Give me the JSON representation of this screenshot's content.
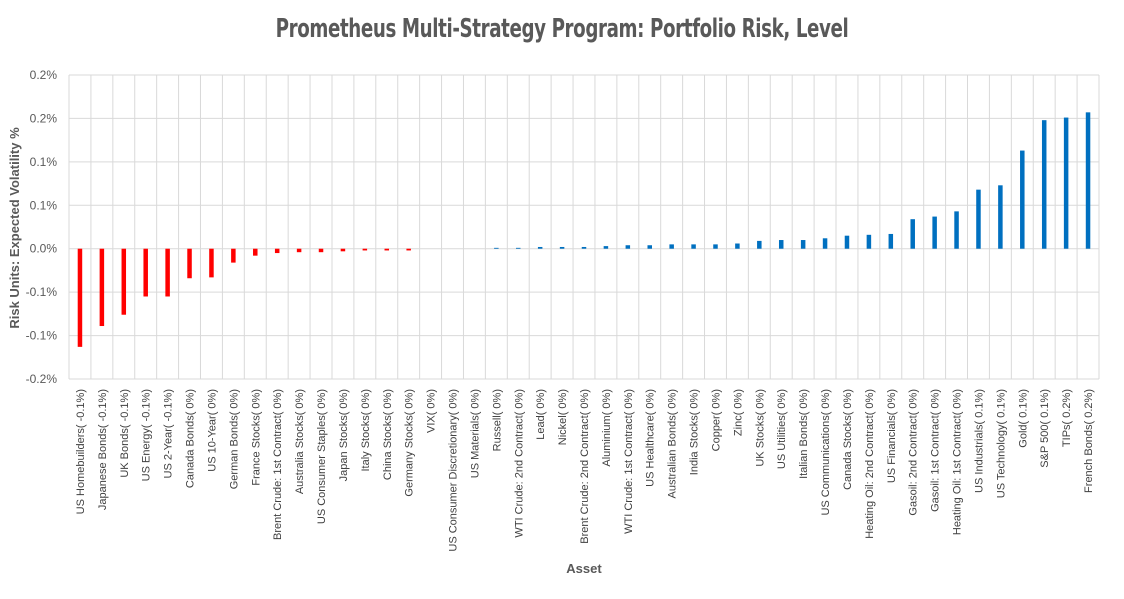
{
  "chart_data": {
    "type": "bar",
    "title": "Prometheus Multi-Strategy Program: Portfolio Risk, Level",
    "xlabel": "Asset",
    "ylabel": "Risk Units: Expected Volatility %",
    "ylim": [
      -0.15,
      0.2
    ],
    "yticks": [
      0.2,
      0.15,
      0.1,
      0.05,
      0.0,
      -0.05,
      -0.1,
      -0.15
    ],
    "ytick_labels": [
      "0.2%",
      "0.2%",
      "0.1%",
      "0.1%",
      "0.0%",
      "-0.1%",
      "-0.1%",
      "-0.2%"
    ],
    "negative_color": "#ff0000",
    "positive_color": "#0070c0",
    "categories": [
      "US Homebuilders( -0.1%)",
      "Japanese Bonds( -0.1%)",
      "UK Bonds( -0.1%)",
      "US Energy( -0.1%)",
      "US 2-Year( -0.1%)",
      "Canada Bonds( 0%)",
      "US 10-Year( 0%)",
      "German Bonds( 0%)",
      "France Stocks( 0%)",
      "Brent Crude: 1st Contract( 0%)",
      "Australia Stocks( 0%)",
      "US Consumer Staples( 0%)",
      "Japan Stocks( 0%)",
      "Italy Stocks( 0%)",
      "China Stocks( 0%)",
      "Germany Stocks( 0%)",
      "VIX( 0%)",
      "US Consumer Discretionary( 0%)",
      "US Materials( 0%)",
      "Russell( 0%)",
      "WTI Crude: 2nd Contract( 0%)",
      "Lead( 0%)",
      "Nickel( 0%)",
      "Brent Crude: 2nd Contract( 0%)",
      "Aluminium( 0%)",
      "WTI Crude: 1st Contract( 0%)",
      "US Healthcare( 0%)",
      "Australian Bonds( 0%)",
      "India Stocks( 0%)",
      "Copper( 0%)",
      "Zinc( 0%)",
      "UK Stocks( 0%)",
      "US Utilities( 0%)",
      "Italian Bonds( 0%)",
      "US Communications( 0%)",
      "Canada Stocks( 0%)",
      "Heating Oil: 2nd Contract( 0%)",
      "US Financials( 0%)",
      "Gasoil: 2nd Contract( 0%)",
      "Gasoil: 1st Contract( 0%)",
      "Heating Oil: 1st Contract( 0%)",
      "US Industrials( 0.1%)",
      "US Technology( 0.1%)",
      "Gold( 0.1%)",
      "S&P 500( 0.1%)",
      "TIPs( 0.2%)",
      "French Bonds( 0.2%)"
    ],
    "values": [
      -0.113,
      -0.089,
      -0.076,
      -0.055,
      -0.055,
      -0.034,
      -0.033,
      -0.016,
      -0.008,
      -0.005,
      -0.004,
      -0.004,
      -0.003,
      -0.002,
      -0.002,
      -0.002,
      0.0,
      0.0,
      0.0,
      0.001,
      0.001,
      0.002,
      0.002,
      0.002,
      0.003,
      0.004,
      0.004,
      0.005,
      0.005,
      0.005,
      0.006,
      0.009,
      0.01,
      0.01,
      0.012,
      0.015,
      0.016,
      0.017,
      0.034,
      0.037,
      0.043,
      0.068,
      0.073,
      0.113,
      0.148,
      0.151,
      0.157
    ]
  }
}
